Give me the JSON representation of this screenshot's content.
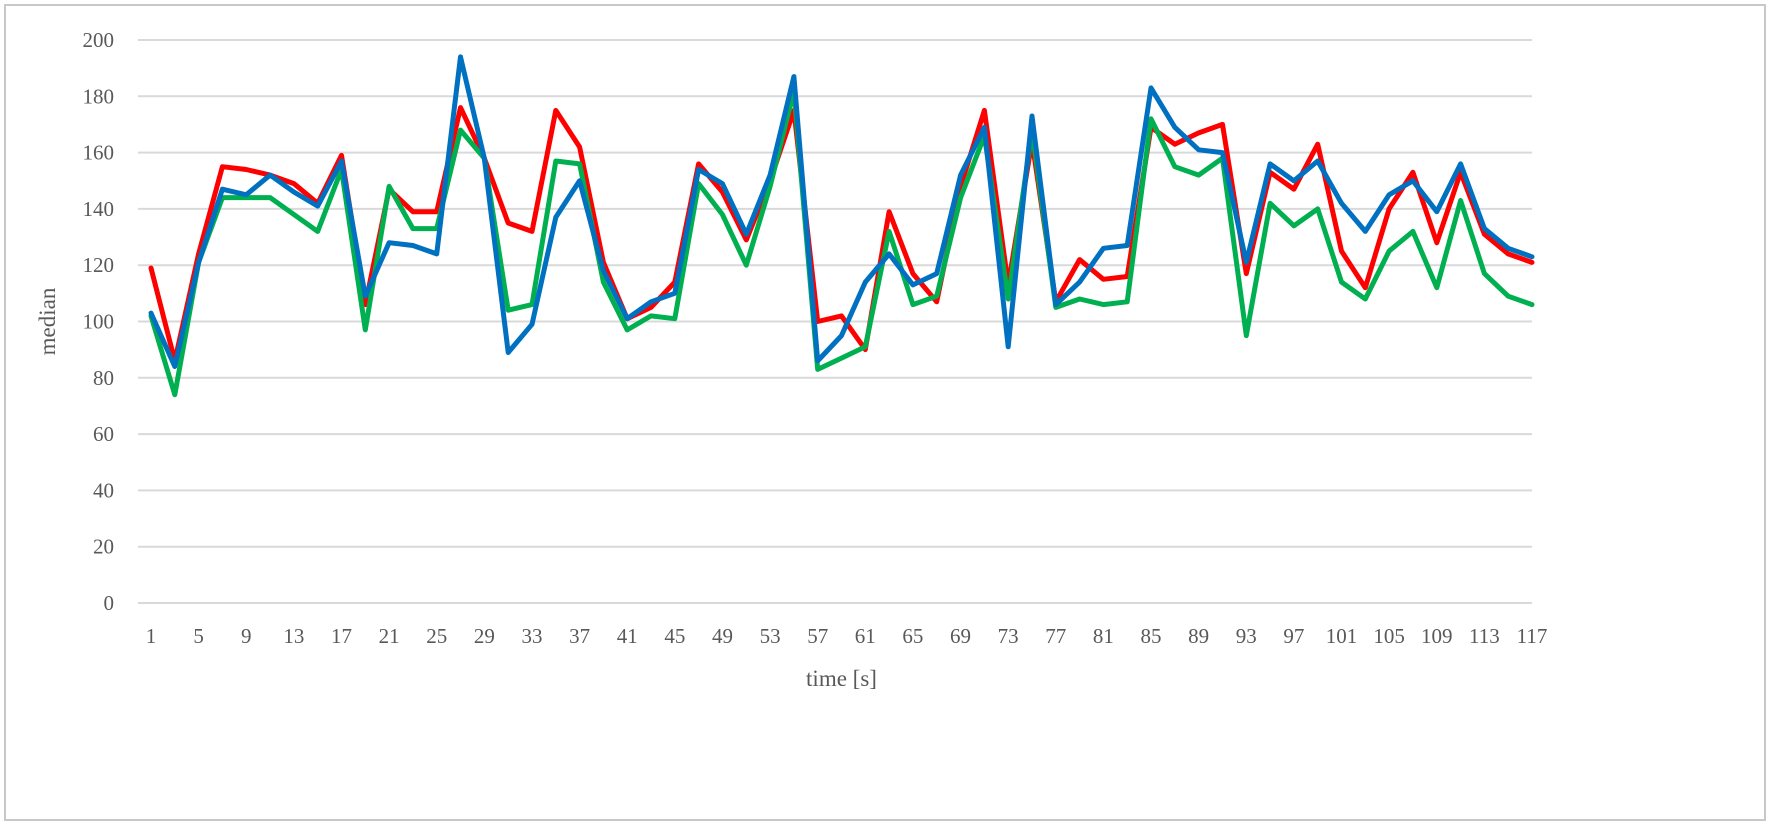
{
  "chart_data": {
    "type": "line",
    "xlabel": "time [s]",
    "ylabel": "median",
    "ylim": [
      0,
      200
    ],
    "yticks": [
      0,
      20,
      40,
      60,
      80,
      100,
      120,
      140,
      160,
      180,
      200
    ],
    "x_tick_labels": [
      "1",
      "5",
      "9",
      "13",
      "17",
      "21",
      "25",
      "29",
      "33",
      "37",
      "41",
      "45",
      "49",
      "53",
      "57",
      "61",
      "65",
      "69",
      "73",
      "77",
      "81",
      "85",
      "89",
      "93",
      "97",
      "101",
      "105",
      "109",
      "113",
      "117"
    ],
    "grid": true,
    "legend": "none",
    "x": [
      1,
      3,
      5,
      7,
      9,
      11,
      13,
      15,
      17,
      19,
      21,
      23,
      25,
      27,
      29,
      31,
      33,
      35,
      37,
      39,
      41,
      43,
      45,
      47,
      49,
      51,
      53,
      55,
      57,
      59,
      61,
      63,
      65,
      67,
      69,
      71,
      73,
      75,
      77,
      79,
      81,
      83,
      85,
      87,
      89,
      91,
      93,
      95,
      97,
      99,
      101,
      103,
      105,
      107,
      109,
      111,
      113,
      115,
      117
    ],
    "series": [
      {
        "color": "#ff0000",
        "values": [
          119,
          86,
          124,
          155,
          154,
          152,
          149,
          142,
          159,
          106,
          147,
          139,
          139,
          176,
          158,
          135,
          132,
          175,
          162,
          121,
          101,
          105,
          114,
          156,
          146,
          129,
          150,
          175,
          100,
          102,
          90,
          139,
          117,
          107,
          148,
          175,
          113,
          164,
          107,
          122,
          115,
          116,
          169,
          163,
          167,
          170,
          117,
          153,
          147,
          163,
          125,
          112,
          140,
          153,
          128,
          153,
          131,
          124,
          121
        ]
      },
      {
        "color": "#00b050",
        "values": [
          102,
          74,
          121,
          144,
          144,
          144,
          138,
          132,
          154,
          97,
          148,
          133,
          133,
          168,
          158,
          104,
          106,
          157,
          156,
          114,
          97,
          102,
          101,
          149,
          138,
          120,
          148,
          182,
          83,
          87,
          91,
          132,
          106,
          109,
          144,
          166,
          108,
          168,
          105,
          108,
          106,
          107,
          172,
          155,
          152,
          158,
          95,
          142,
          134,
          140,
          114,
          108,
          125,
          132,
          112,
          143,
          117,
          109,
          106
        ]
      },
      {
        "color": "#0070c0",
        "values": [
          103,
          84,
          121,
          147,
          145,
          152,
          146,
          141,
          157,
          109,
          128,
          127,
          124,
          194,
          158,
          89,
          99,
          137,
          150,
          118,
          101,
          107,
          110,
          154,
          149,
          131,
          152,
          187,
          86,
          95,
          114,
          124,
          113,
          117,
          152,
          169,
          91,
          173,
          106,
          114,
          126,
          127,
          183,
          169,
          161,
          160,
          121,
          156,
          150,
          157,
          142,
          132,
          145,
          150,
          139,
          156,
          133,
          126,
          123
        ]
      }
    ]
  }
}
